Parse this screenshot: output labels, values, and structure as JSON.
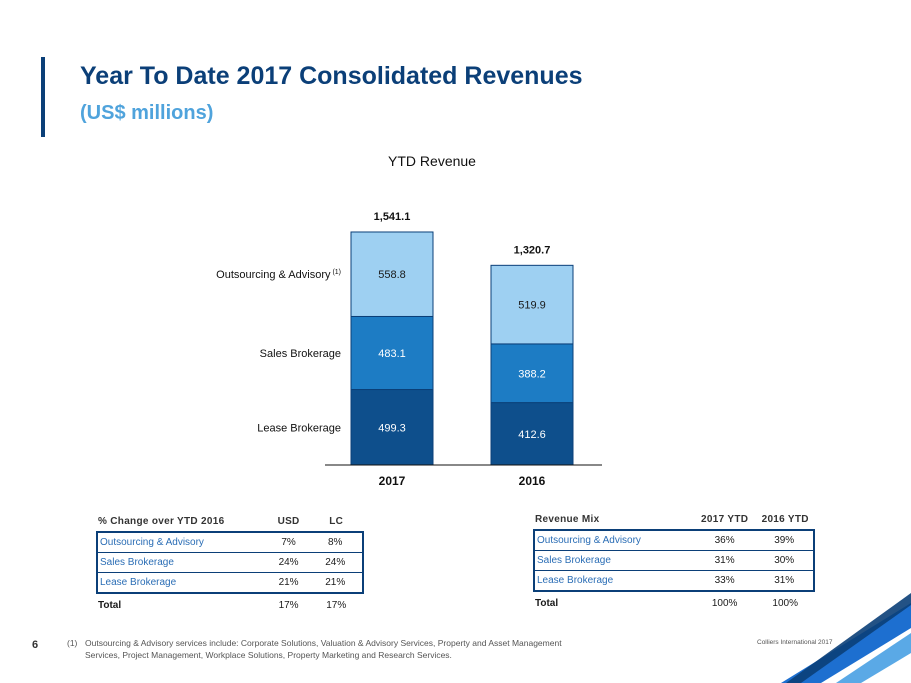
{
  "header": {
    "title": "Year To Date 2017 Consolidated Revenues",
    "subtitle": "(US$ millions)"
  },
  "chart_data": {
    "type": "bar",
    "stacked": true,
    "title": "YTD Revenue",
    "categories": [
      "2017",
      "2016"
    ],
    "series": [
      {
        "name": "Lease Brokerage",
        "values": [
          499.3,
          412.6
        ],
        "labels": [
          "499.3",
          "412.6"
        ],
        "color": "#0e4f8c"
      },
      {
        "name": "Sales Brokerage",
        "values": [
          483.1,
          388.2
        ],
        "labels": [
          "483.1",
          "388.2"
        ],
        "color": "#1d7cc4"
      },
      {
        "name": "Outsourcing & Advisory",
        "footnote_ref": "(1)",
        "values": [
          558.8,
          519.9
        ],
        "labels": [
          "558.8",
          "519.9"
        ],
        "color": "#9ed0f2"
      }
    ],
    "totals": [
      "1,541.1",
      "1,320.7"
    ],
    "ylim": [
      0,
      1600
    ],
    "xlabel": "",
    "ylabel": ""
  },
  "change_table": {
    "headers": [
      "% Change over YTD 2016",
      "USD",
      "LC"
    ],
    "rows": [
      [
        "Outsourcing & Advisory",
        "7%",
        "8%"
      ],
      [
        "Sales Brokerage",
        "24%",
        "24%"
      ],
      [
        "Lease Brokerage",
        "21%",
        "21%"
      ]
    ],
    "total": [
      "Total",
      "17%",
      "17%"
    ]
  },
  "mix_table": {
    "headers": [
      "Revenue Mix",
      "2017 YTD",
      "2016 YTD"
    ],
    "rows": [
      [
        "Outsourcing & Advisory",
        "36%",
        "39%"
      ],
      [
        "Sales Brokerage",
        "31%",
        "30%"
      ],
      [
        "Lease Brokerage",
        "33%",
        "31%"
      ]
    ],
    "total": [
      "Total",
      "100%",
      "100%"
    ]
  },
  "footer": {
    "page_number": "6",
    "footnote_mark": "(1)",
    "footnote_line1": "Outsourcing & Advisory services include: Corporate Solutions, Valuation & Advisory Services, Property and Asset Management",
    "footnote_line2": "Services, Project Management, Workplace Solutions, Property Marketing and Research Services.",
    "copyright": "Colliers International 2017"
  }
}
